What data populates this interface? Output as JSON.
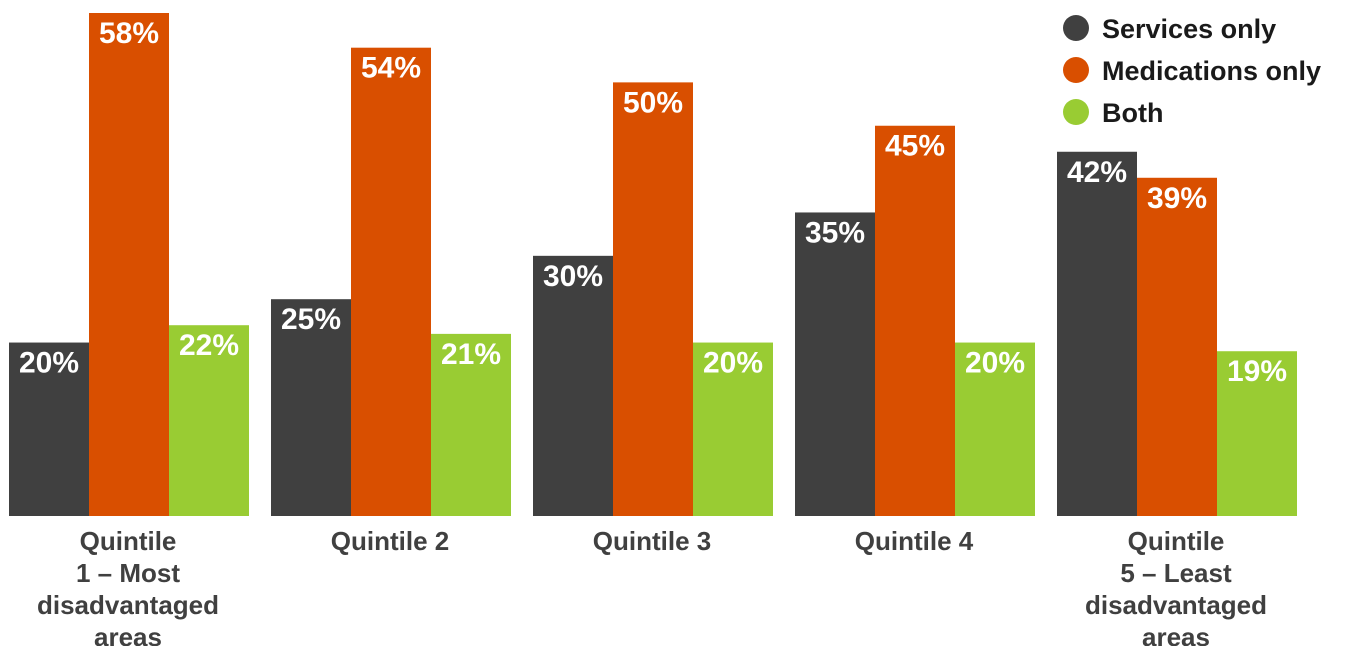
{
  "chart_data": {
    "type": "bar",
    "categories": [
      [
        "Quintile",
        "1 – Most",
        "disadvantaged",
        "areas"
      ],
      [
        "Quintile 2"
      ],
      [
        "Quintile 3"
      ],
      [
        "Quintile 4"
      ],
      [
        "Quintile",
        "5 – Least",
        "disadvantaged",
        "areas"
      ]
    ],
    "series": [
      {
        "name": "Services only",
        "color": "#404040",
        "values": [
          20,
          25,
          30,
          35,
          42
        ],
        "labels": [
          "20%",
          "25%",
          "30%",
          "35%",
          "42%"
        ]
      },
      {
        "name": "Medications only",
        "color": "#d94f00",
        "values": [
          58,
          54,
          50,
          45,
          39
        ],
        "labels": [
          "58%",
          "54%",
          "50%",
          "45%",
          "39%"
        ]
      },
      {
        "name": "Both",
        "color": "#99cc33",
        "values": [
          22,
          21,
          20,
          20,
          19
        ],
        "labels": [
          "22%",
          "21%",
          "20%",
          "20%",
          "19%"
        ]
      }
    ],
    "ylim": [
      0,
      58
    ],
    "grid": false,
    "legend": "top-right",
    "xlabel": "",
    "ylabel": "",
    "title": ""
  }
}
